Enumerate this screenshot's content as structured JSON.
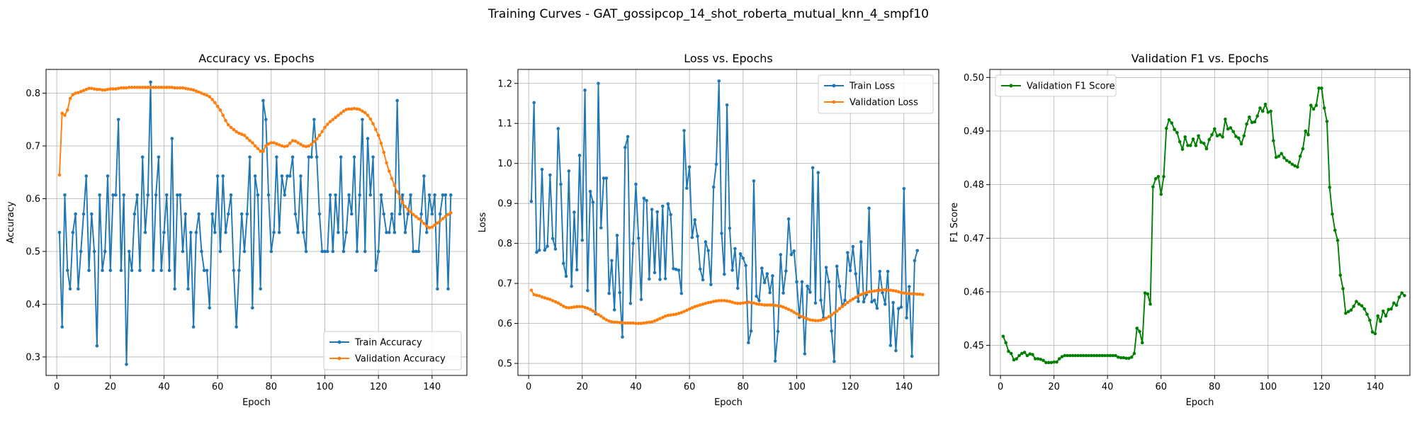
{
  "suptitle": "Training Curves - GAT_gossipcop_14_shot_roberta_mutual_knn_4_smpf10",
  "colors": {
    "blue": "#1f77b4",
    "orange": "#ff7f0e",
    "green": "#008000",
    "grid": "#b0b0b0"
  },
  "chart_data": [
    {
      "type": "line",
      "title": "Accuracy vs. Epochs",
      "xlabel": "Epoch",
      "ylabel": "Accuracy",
      "xlim": [
        -4,
        153
      ],
      "ylim": [
        0.265,
        0.845
      ],
      "xticks": [
        0,
        20,
        40,
        60,
        80,
        100,
        120,
        140
      ],
      "yticks": [
        0.3,
        0.4,
        0.5,
        0.6,
        0.7,
        0.8
      ],
      "ytick_labels": [
        "0.3",
        "0.4",
        "0.5",
        "0.6",
        "0.7",
        "0.8"
      ],
      "grid": true,
      "legend_position": "lower right",
      "series": [
        {
          "name": "Train Accuracy",
          "color": "#1f77b4",
          "x_start": 1,
          "values": [
            0.536,
            0.357,
            0.607,
            0.464,
            0.429,
            0.536,
            0.571,
            0.429,
            0.5,
            0.571,
            0.643,
            0.464,
            0.571,
            0.5,
            0.321,
            0.607,
            0.464,
            0.5,
            0.643,
            0.464,
            0.607,
            0.607,
            0.75,
            0.464,
            0.607,
            0.286,
            0.5,
            0.464,
            0.571,
            0.607,
            0.464,
            0.679,
            0.536,
            0.607,
            0.821,
            0.464,
            0.607,
            0.679,
            0.464,
            0.536,
            0.607,
            0.464,
            0.714,
            0.429,
            0.607,
            0.607,
            0.5,
            0.571,
            0.429,
            0.536,
            0.357,
            0.536,
            0.571,
            0.5,
            0.464,
            0.464,
            0.393,
            0.571,
            0.536,
            0.643,
            0.5,
            0.643,
            0.536,
            0.571,
            0.607,
            0.464,
            0.357,
            0.464,
            0.571,
            0.5,
            0.571,
            0.679,
            0.393,
            0.643,
            0.607,
            0.429,
            0.786,
            0.75,
            0.607,
            0.5,
            0.536,
            0.679,
            0.536,
            0.643,
            0.607,
            0.643,
            0.643,
            0.679,
            0.571,
            0.536,
            0.643,
            0.536,
            0.5,
            0.679,
            0.679,
            0.75,
            0.679,
            0.571,
            0.5,
            0.5,
            0.5,
            0.607,
            0.5,
            0.607,
            0.536,
            0.679,
            0.5,
            0.536,
            0.607,
            0.571,
            0.679,
            0.5,
            0.607,
            0.75,
            0.5,
            0.714,
            0.607,
            0.679,
            0.464,
            0.5,
            0.607,
            0.571,
            0.536,
            0.536,
            0.571,
            0.536,
            0.786,
            0.571,
            0.607,
            0.536,
            0.571,
            0.607,
            0.5,
            0.5,
            0.5,
            0.571,
            0.643,
            0.536,
            0.607,
            0.571,
            0.607,
            0.429,
            0.571,
            0.607,
            0.607,
            0.429,
            0.607
          ]
        },
        {
          "name": "Validation Accuracy",
          "color": "#ff7f0e",
          "x_start": 1,
          "values": [
            0.645,
            0.762,
            0.758,
            0.768,
            0.79,
            0.797,
            0.8,
            0.801,
            0.803,
            0.805,
            0.807,
            0.809,
            0.809,
            0.808,
            0.807,
            0.807,
            0.806,
            0.806,
            0.807,
            0.808,
            0.808,
            0.808,
            0.809,
            0.81,
            0.81,
            0.81,
            0.811,
            0.811,
            0.811,
            0.811,
            0.811,
            0.811,
            0.811,
            0.811,
            0.811,
            0.811,
            0.811,
            0.811,
            0.811,
            0.811,
            0.811,
            0.811,
            0.811,
            0.81,
            0.81,
            0.81,
            0.81,
            0.809,
            0.808,
            0.807,
            0.806,
            0.804,
            0.802,
            0.8,
            0.798,
            0.796,
            0.793,
            0.788,
            0.782,
            0.775,
            0.768,
            0.758,
            0.748,
            0.74,
            0.735,
            0.731,
            0.727,
            0.724,
            0.722,
            0.72,
            0.715,
            0.71,
            0.706,
            0.7,
            0.695,
            0.69,
            0.69,
            0.7,
            0.704,
            0.706,
            0.706,
            0.704,
            0.702,
            0.7,
            0.699,
            0.7,
            0.705,
            0.71,
            0.709,
            0.706,
            0.703,
            0.7,
            0.699,
            0.7,
            0.703,
            0.708,
            0.713,
            0.72,
            0.727,
            0.735,
            0.741,
            0.746,
            0.75,
            0.754,
            0.758,
            0.762,
            0.766,
            0.769,
            0.77,
            0.77,
            0.771,
            0.77,
            0.769,
            0.766,
            0.763,
            0.758,
            0.751,
            0.742,
            0.731,
            0.72,
            0.705,
            0.688,
            0.668,
            0.652,
            0.638,
            0.625,
            0.613,
            0.603,
            0.593,
            0.585,
            0.58,
            0.575,
            0.57,
            0.566,
            0.562,
            0.558,
            0.553,
            0.548,
            0.545,
            0.546,
            0.55,
            0.554,
            0.558,
            0.562,
            0.566,
            0.57,
            0.573
          ]
        }
      ]
    },
    {
      "type": "line",
      "title": "Loss vs. Epochs",
      "xlabel": "Epoch",
      "ylabel": "Loss",
      "xlim": [
        -4,
        153
      ],
      "ylim": [
        0.47,
        1.235
      ],
      "xticks": [
        0,
        20,
        40,
        60,
        80,
        100,
        120,
        140
      ],
      "yticks": [
        0.5,
        0.6,
        0.7,
        0.8,
        0.9,
        1.0,
        1.1,
        1.2
      ],
      "ytick_labels": [
        "0.5",
        "0.6",
        "0.7",
        "0.8",
        "0.9",
        "1.0",
        "1.1",
        "1.2"
      ],
      "grid": true,
      "legend_position": "upper right",
      "series": [
        {
          "name": "Train Loss",
          "color": "#1f77b4",
          "x_start": 1,
          "values": [
            0.905,
            1.152,
            0.778,
            0.783,
            0.985,
            0.783,
            0.793,
            0.971,
            0.812,
            0.786,
            1.087,
            0.948,
            0.75,
            0.718,
            0.981,
            0.693,
            0.878,
            0.734,
            1.02,
            0.808,
            1.183,
            0.682,
            0.93,
            0.903,
            0.624,
            1.2,
            0.839,
            0.963,
            0.963,
            0.675,
            0.757,
            0.634,
            0.82,
            0.677,
            0.566,
            1.04,
            1.067,
            0.65,
            0.8,
            0.948,
            0.813,
            0.66,
            0.913,
            0.907,
            0.711,
            0.885,
            0.727,
            0.879,
            0.71,
            0.893,
            0.712,
            0.899,
            0.872,
            0.737,
            0.735,
            0.733,
            0.675,
            1.082,
            0.938,
            0.991,
            0.815,
            0.859,
            0.818,
            0.736,
            0.709,
            0.804,
            0.782,
            0.697,
            0.941,
            0.998,
            1.206,
            0.825,
            0.723,
            1.146,
            0.838,
            0.733,
            0.787,
            0.688,
            0.774,
            0.763,
            0.745,
            0.552,
            0.581,
            0.956,
            0.668,
            0.657,
            0.738,
            0.702,
            0.724,
            0.677,
            0.719,
            0.506,
            0.58,
            0.772,
            0.676,
            0.731,
            0.861,
            0.772,
            0.781,
            0.704,
            0.615,
            0.704,
            0.524,
            0.693,
            0.678,
            0.989,
            0.651,
            0.977,
            0.658,
            0.614,
            0.74,
            0.704,
            0.581,
            0.505,
            0.743,
            0.693,
            0.643,
            0.658,
            0.777,
            0.732,
            0.792,
            0.724,
            0.655,
            0.804,
            0.654,
            0.672,
            0.888,
            0.654,
            0.658,
            0.638,
            0.73,
            0.677,
            0.648,
            0.73,
            0.545,
            0.652,
            0.532,
            0.637,
            0.641,
            0.937,
            0.614,
            0.692,
            0.518,
            0.757,
            0.782
          ]
        },
        {
          "name": "Validation Loss",
          "color": "#ff7f0e",
          "x_start": 1,
          "values": [
            0.683,
            0.672,
            0.67,
            0.669,
            0.666,
            0.664,
            0.662,
            0.66,
            0.657,
            0.654,
            0.651,
            0.647,
            0.643,
            0.64,
            0.639,
            0.64,
            0.641,
            0.642,
            0.642,
            0.642,
            0.64,
            0.638,
            0.635,
            0.631,
            0.627,
            0.622,
            0.618,
            0.613,
            0.609,
            0.606,
            0.604,
            0.603,
            0.603,
            0.602,
            0.602,
            0.601,
            0.601,
            0.601,
            0.601,
            0.6,
            0.6,
            0.6,
            0.601,
            0.602,
            0.603,
            0.604,
            0.606,
            0.609,
            0.612,
            0.615,
            0.618,
            0.62,
            0.621,
            0.622,
            0.623,
            0.625,
            0.627,
            0.63,
            0.633,
            0.636,
            0.639,
            0.642,
            0.644,
            0.646,
            0.648,
            0.65,
            0.652,
            0.653,
            0.655,
            0.656,
            0.657,
            0.657,
            0.657,
            0.656,
            0.655,
            0.653,
            0.651,
            0.65,
            0.65,
            0.651,
            0.652,
            0.653,
            0.652,
            0.651,
            0.649,
            0.648,
            0.647,
            0.646,
            0.646,
            0.646,
            0.646,
            0.645,
            0.644,
            0.643,
            0.641,
            0.638,
            0.635,
            0.632,
            0.628,
            0.624,
            0.62,
            0.617,
            0.614,
            0.611,
            0.609,
            0.608,
            0.607,
            0.607,
            0.608,
            0.61,
            0.613,
            0.617,
            0.621,
            0.626,
            0.631,
            0.637,
            0.642,
            0.647,
            0.652,
            0.657,
            0.661,
            0.665,
            0.669,
            0.672,
            0.675,
            0.677,
            0.679,
            0.68,
            0.681,
            0.682,
            0.683,
            0.684,
            0.684,
            0.683,
            0.683,
            0.682,
            0.681,
            0.679,
            0.677,
            0.676,
            0.675,
            0.675,
            0.674,
            0.674,
            0.673,
            0.673,
            0.672
          ]
        }
      ]
    },
    {
      "type": "line",
      "title": "Validation F1 vs. Epochs",
      "xlabel": "Epoch",
      "ylabel": "F1 Score",
      "xlim": [
        -4,
        153
      ],
      "ylim": [
        0.4444,
        0.5015
      ],
      "xticks": [
        0,
        20,
        40,
        60,
        80,
        100,
        120,
        140
      ],
      "yticks": [
        0.45,
        0.46,
        0.47,
        0.48,
        0.49,
        0.5
      ],
      "ytick_labels": [
        "0.45",
        "0.46",
        "0.47",
        "0.48",
        "0.49",
        "0.50"
      ],
      "grid": true,
      "legend_position": "upper left",
      "series": [
        {
          "name": "Validation F1 Score",
          "color": "#008000",
          "x_start": 1,
          "values": [
            0.4517,
            0.4505,
            0.4489,
            0.4485,
            0.4473,
            0.4475,
            0.4481,
            0.4485,
            0.4487,
            0.4481,
            0.4484,
            0.4483,
            0.4475,
            0.4475,
            0.4474,
            0.4472,
            0.4468,
            0.4468,
            0.4468,
            0.4469,
            0.4469,
            0.4475,
            0.4479,
            0.4481,
            0.4481,
            0.4481,
            0.4481,
            0.4481,
            0.4481,
            0.4481,
            0.4481,
            0.4481,
            0.4481,
            0.4481,
            0.4481,
            0.4481,
            0.4481,
            0.4481,
            0.4481,
            0.4481,
            0.4481,
            0.4481,
            0.4481,
            0.4478,
            0.4477,
            0.4477,
            0.4476,
            0.4476,
            0.4478,
            0.4485,
            0.4532,
            0.4526,
            0.4505,
            0.4598,
            0.4596,
            0.4577,
            0.4796,
            0.4811,
            0.4815,
            0.4782,
            0.4815,
            0.4905,
            0.4921,
            0.4915,
            0.4903,
            0.4897,
            0.488,
            0.4866,
            0.4889,
            0.4873,
            0.4873,
            0.4885,
            0.4873,
            0.4891,
            0.4879,
            0.4877,
            0.4867,
            0.4884,
            0.4893,
            0.4904,
            0.4891,
            0.4893,
            0.4889,
            0.4922,
            0.4904,
            0.4906,
            0.4899,
            0.489,
            0.4887,
            0.4876,
            0.4891,
            0.4913,
            0.4926,
            0.4916,
            0.4917,
            0.4928,
            0.4943,
            0.4937,
            0.495,
            0.4935,
            0.4937,
            0.4882,
            0.4851,
            0.4853,
            0.4858,
            0.485,
            0.4845,
            0.4842,
            0.4838,
            0.4835,
            0.4833,
            0.4853,
            0.4867,
            0.49,
            0.4893,
            0.4948,
            0.4941,
            0.4948,
            0.498,
            0.498,
            0.4943,
            0.4918,
            0.4795,
            0.4745,
            0.4715,
            0.4696,
            0.4631,
            0.4606,
            0.456,
            0.4563,
            0.4566,
            0.4573,
            0.4582,
            0.4577,
            0.4574,
            0.4568,
            0.4558,
            0.4547,
            0.4525,
            0.4522,
            0.4555,
            0.4545,
            0.4564,
            0.4555,
            0.4567,
            0.4568,
            0.4579,
            0.4575,
            0.459,
            0.4598,
            0.4593
          ]
        }
      ]
    }
  ]
}
